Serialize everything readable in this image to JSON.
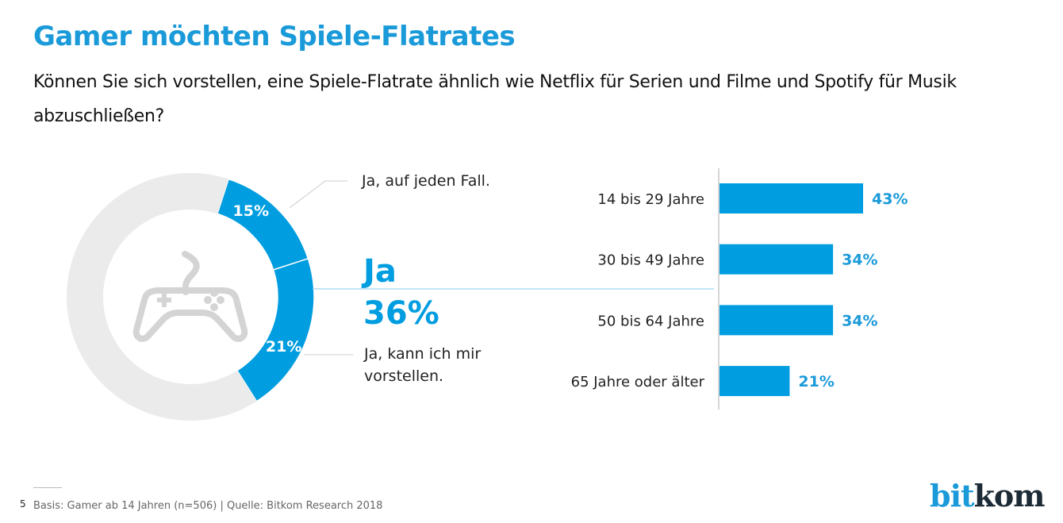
{
  "header": {
    "title": "Gamer möchten Spiele-Flatrates",
    "subtitle": "Können Sie sich vorstellen, eine Spiele-Flatrate ähnlich wie Netflix für Serien und Filme und Spotify für Musik abzuschließen?"
  },
  "colors": {
    "accent": "#009de0",
    "donut_rest": "#ebebeb",
    "icon": "#d4d4d4",
    "title": "#1a9ad9"
  },
  "chart_data": [
    {
      "type": "pie",
      "variant": "donut",
      "center_icon": "gamepad-icon",
      "slices": [
        {
          "label": "Ja, auf jeden Fall.",
          "value": 15,
          "value_label": "15%"
        },
        {
          "label": "Ja, kann ich mir vorstellen.",
          "value": 21,
          "value_label": "21%"
        },
        {
          "label": "",
          "value": 64,
          "value_label": ""
        }
      ],
      "total_label": "Ja",
      "total_value": "36%"
    },
    {
      "type": "bar",
      "orientation": "horizontal",
      "categories": [
        "14 bis 29 Jahre",
        "30 bis 49 Jahre",
        "50 bis 64 Jahre",
        "65 Jahre oder älter"
      ],
      "values": [
        43,
        34,
        34,
        21
      ],
      "value_labels": [
        "43%",
        "34%",
        "34%",
        "21%"
      ],
      "xlim": [
        0,
        50
      ],
      "unit": "%"
    }
  ],
  "footer": {
    "page_number": "5",
    "source": "Basis: Gamer ab 14 Jahren (n=506) | Quelle: Bitkom Research 2018"
  },
  "logo": {
    "part1": "bit",
    "part2": "kom"
  }
}
